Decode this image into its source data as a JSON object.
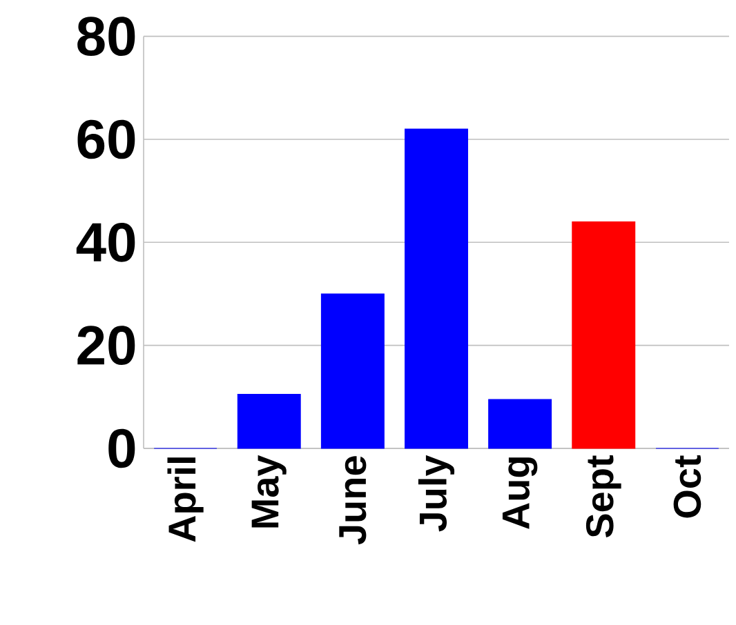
{
  "chart_data": {
    "type": "bar",
    "categories": [
      "April",
      "May",
      "June",
      "July",
      "Aug",
      "Sept",
      "Oct"
    ],
    "values": [
      0,
      10.5,
      30,
      62,
      9.5,
      44,
      0
    ],
    "colors": [
      "#0000ff",
      "#0000ff",
      "#0000ff",
      "#0000ff",
      "#0000ff",
      "#ff0000",
      "#0000ff"
    ],
    "ylim": [
      0,
      80
    ],
    "yticks": [
      0,
      20,
      40,
      60,
      80
    ],
    "grid": "y"
  }
}
